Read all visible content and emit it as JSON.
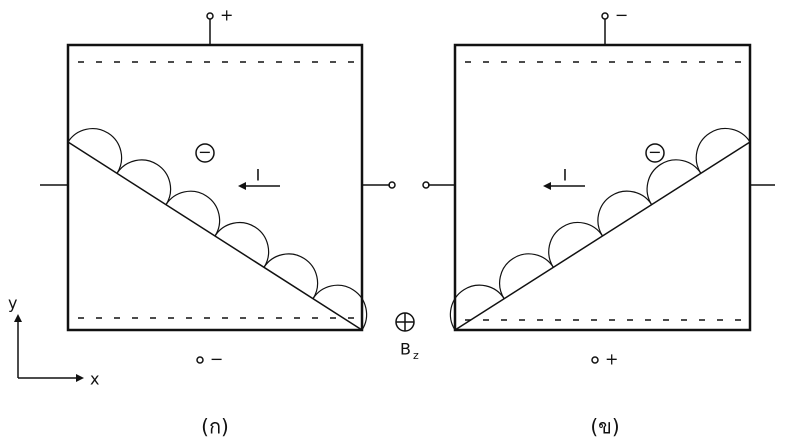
{
  "panels": [
    {
      "label": "(ก)",
      "top_terminal": "+",
      "bottom_terminal": "−",
      "current": "I",
      "charge": "−"
    },
    {
      "label": "(ข)",
      "top_terminal": "−",
      "bottom_terminal": "+",
      "current": "I",
      "charge": "−"
    }
  ],
  "field": {
    "symbol": "B",
    "subscript": "z"
  },
  "axes": {
    "x": "x",
    "y": "y"
  }
}
